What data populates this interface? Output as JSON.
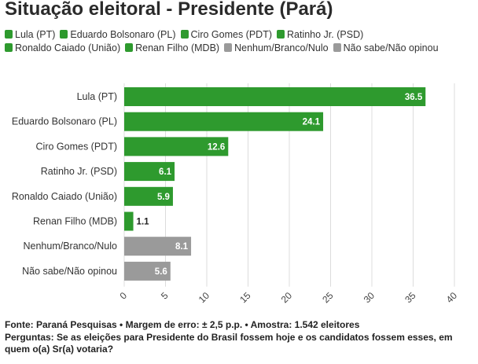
{
  "chart_data": {
    "type": "bar",
    "orientation": "horizontal",
    "title": "Situação eleitoral - Presidente (Pará)",
    "categories": [
      "Lula (PT)",
      "Eduardo Bolsonaro (PL)",
      "Ciro Gomes (PDT)",
      "Ratinho Jr. (PSD)",
      "Ronaldo Caiado (União)",
      "Renan Filho (MDB)",
      "Nenhum/Branco/Nulo",
      "Não sabe/Não opinou"
    ],
    "values": [
      36.5,
      24.1,
      12.6,
      6.1,
      5.9,
      1.1,
      8.1,
      5.6
    ],
    "value_labels": [
      "36.5",
      "24.1",
      "12.6",
      "6.1",
      "5.9",
      "1.1",
      "8.1",
      "5.6"
    ],
    "colors": [
      "#2e9a2e",
      "#2e9a2e",
      "#2e9a2e",
      "#2e9a2e",
      "#2e9a2e",
      "#2e9a2e",
      "#9a9a9a",
      "#9a9a9a"
    ],
    "xlim": [
      0,
      40
    ],
    "xticks": [
      0,
      5,
      10,
      15,
      20,
      25,
      30,
      35,
      40
    ],
    "xtick_labels": [
      "0",
      "5",
      "10",
      "15",
      "20",
      "25",
      "30",
      "35",
      "40"
    ],
    "grid": true,
    "legend_position": "top",
    "legend": [
      {
        "label": "Lula (PT)",
        "color": "#2e9a2e"
      },
      {
        "label": "Eduardo Bolsonaro (PL)",
        "color": "#2e9a2e"
      },
      {
        "label": "Ciro Gomes (PDT)",
        "color": "#2e9a2e"
      },
      {
        "label": "Ratinho Jr. (PSD)",
        "color": "#2e9a2e"
      },
      {
        "label": "Ronaldo Caiado (União)",
        "color": "#2e9a2e"
      },
      {
        "label": "Renan Filho (MDB)",
        "color": "#2e9a2e"
      },
      {
        "label": "Nenhum/Branco/Nulo",
        "color": "#9a9a9a"
      },
      {
        "label": "Não sabe/Não opinou",
        "color": "#9a9a9a"
      }
    ]
  },
  "footer": {
    "source": "Fonte: Paraná Pesquisas • Margem de erro: ± 2,5 p.p. • Amostra: 1.542 eleitores",
    "question": "Perguntas: Se as eleições para Presidente do Brasil fossem hoje e os candidatos fossem esses, em quem o(a) Sr(a) votaria?"
  }
}
